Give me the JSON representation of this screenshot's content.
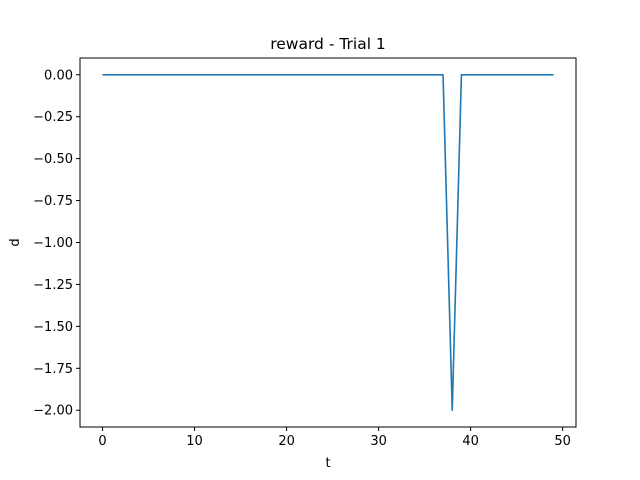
{
  "chart_data": {
    "type": "line",
    "title": "reward - Trial 1",
    "xlabel": "t",
    "ylabel": "d",
    "xlim": [
      -2.45,
      51.45
    ],
    "ylim": [
      -2.1,
      0.1
    ],
    "xticks": [
      0,
      10,
      20,
      30,
      40,
      50
    ],
    "yticks": [
      0.0,
      -0.25,
      -0.5,
      -0.75,
      -1.0,
      -1.25,
      -1.5,
      -1.75,
      -2.0
    ],
    "ytick_labels": [
      "0.00",
      "−0.25",
      "−0.50",
      "−0.75",
      "−1.00",
      "−1.25",
      "−1.50",
      "−1.75",
      "−2.00"
    ],
    "grid": false,
    "line_color": "#1f77b4",
    "series": [
      {
        "x": [
          0,
          1,
          2,
          3,
          4,
          5,
          6,
          7,
          8,
          9,
          10,
          11,
          12,
          13,
          14,
          15,
          16,
          17,
          18,
          19,
          20,
          21,
          22,
          23,
          24,
          25,
          26,
          27,
          28,
          29,
          30,
          31,
          32,
          33,
          34,
          35,
          36,
          37,
          38,
          39,
          40,
          41,
          42,
          43,
          44,
          45,
          46,
          47,
          48,
          49
        ],
        "values": [
          0,
          0,
          0,
          0,
          0,
          0,
          0,
          0,
          0,
          0,
          0,
          0,
          0,
          0,
          0,
          0,
          0,
          0,
          0,
          0,
          0,
          0,
          0,
          0,
          0,
          0,
          0,
          0,
          0,
          0,
          0,
          0,
          0,
          0,
          0,
          0,
          0,
          0,
          -2.0,
          0,
          0,
          0,
          0,
          0,
          0,
          0,
          0,
          0,
          0,
          0
        ]
      }
    ]
  }
}
